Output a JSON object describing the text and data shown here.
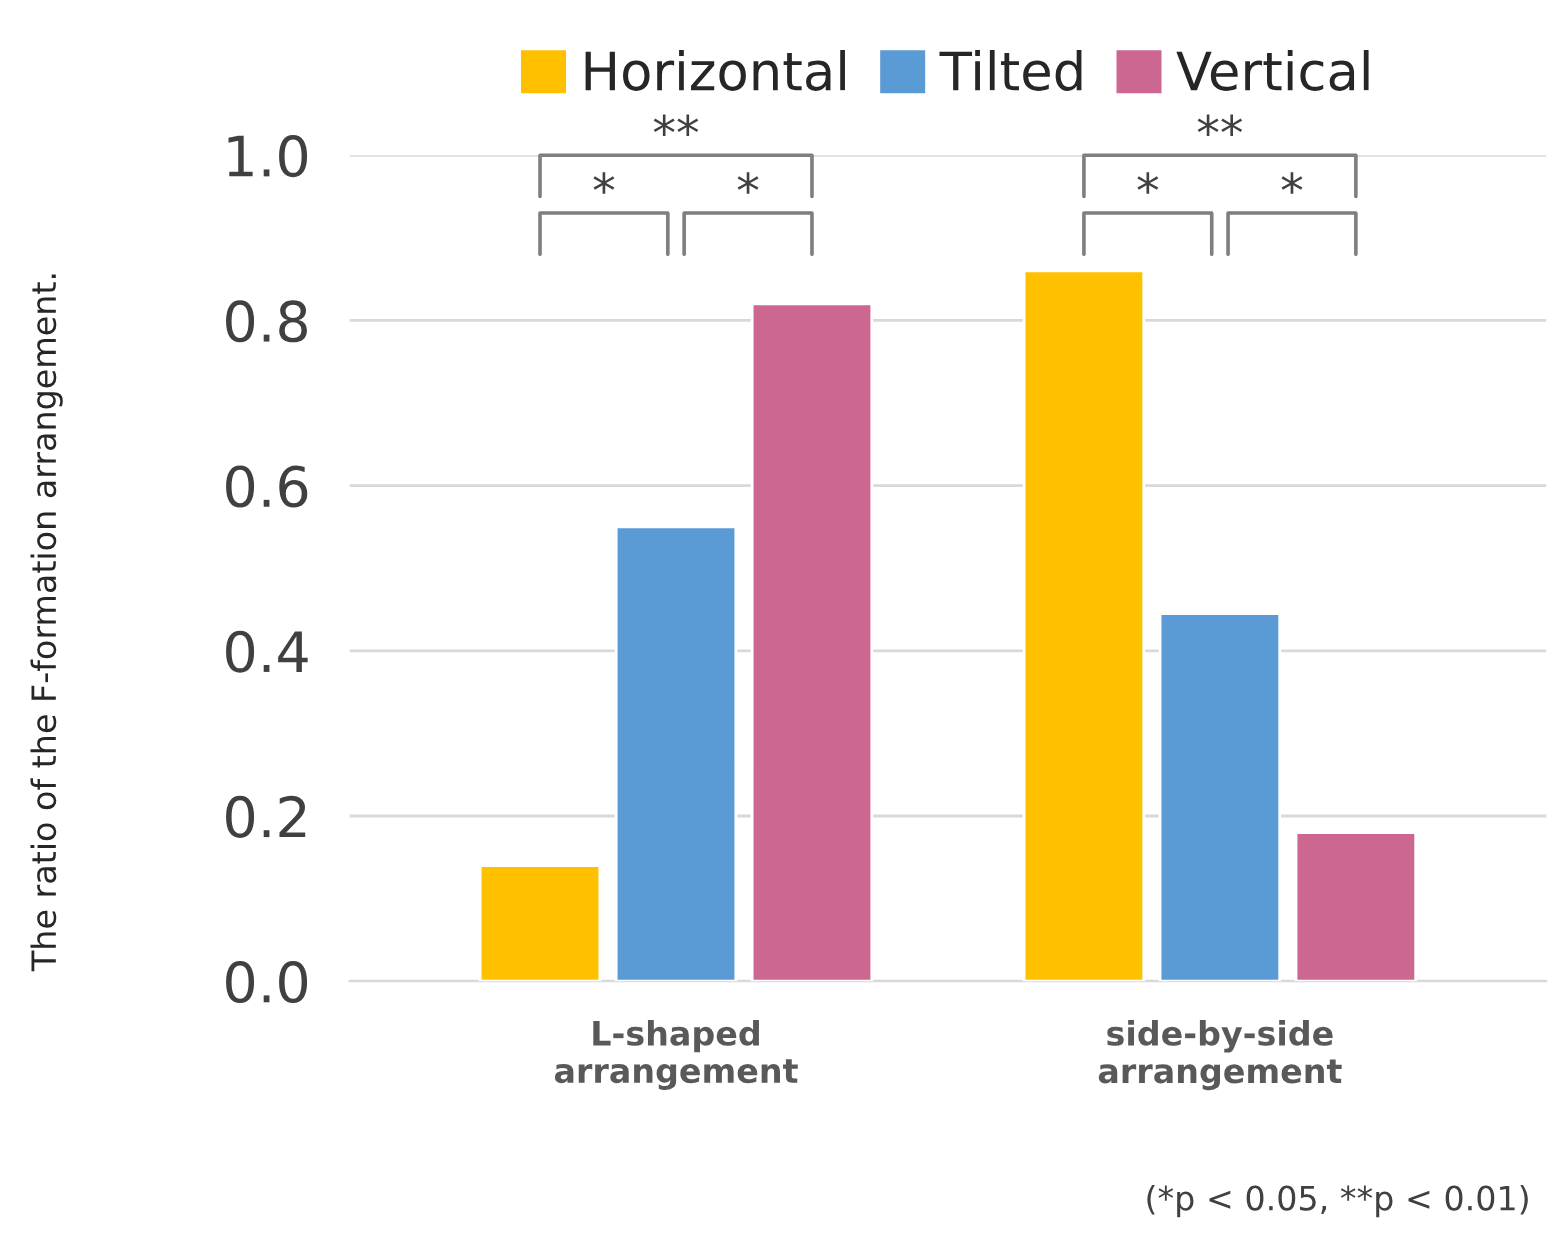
{
  "chart_data": {
    "type": "bar",
    "ylabel": "The ratio of the F-formation arrangement.",
    "categories": [
      "L-shaped\narrangement",
      "side-by-side\narrangement"
    ],
    "series": [
      {
        "name": "Horizontal",
        "color": "#ffc000",
        "values": [
          0.14,
          0.86
        ]
      },
      {
        "name": "Tilted",
        "color": "#5b9bd5",
        "values": [
          0.55,
          0.445
        ]
      },
      {
        "name": "Vertical",
        "color": "#cc6792",
        "values": [
          0.82,
          0.18
        ]
      }
    ],
    "ylim": [
      0,
      1.0
    ],
    "yticks": [
      {
        "value": 0,
        "label": "0.0"
      },
      {
        "value": 0.2,
        "label": "0.2"
      },
      {
        "value": 0.4,
        "label": "0.4"
      },
      {
        "value": 0.6,
        "label": "0.6"
      },
      {
        "value": 0.8,
        "label": "0.8"
      },
      {
        "value": 1.0,
        "label": "1.0"
      }
    ],
    "grid": "y",
    "legend": "top",
    "annotations": [
      "*",
      "*",
      "**",
      "*",
      "*",
      "**",
      "(*p < 0.05, **p < 0.01)"
    ]
  }
}
